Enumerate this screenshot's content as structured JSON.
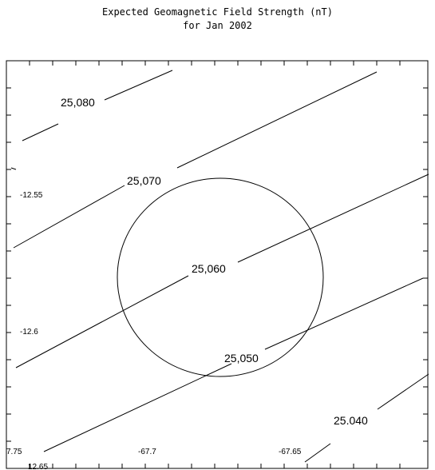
{
  "title": {
    "line1": "Expected Geomagnetic Field Strength (nT)",
    "line2": "for Jan 2002"
  },
  "contour_labels": [
    "25,080",
    "25,070",
    "25,060",
    "25,050",
    "25.040"
  ],
  "axis_labels": {
    "y_top": "-12.55",
    "y_bottom": "-12.6",
    "x_left": "7.75",
    "x_mid": "-67.7",
    "x_right": "-67.65",
    "x_cut": "12.65"
  },
  "colors": {
    "line": "#000000",
    "background": "#ffffff"
  }
}
